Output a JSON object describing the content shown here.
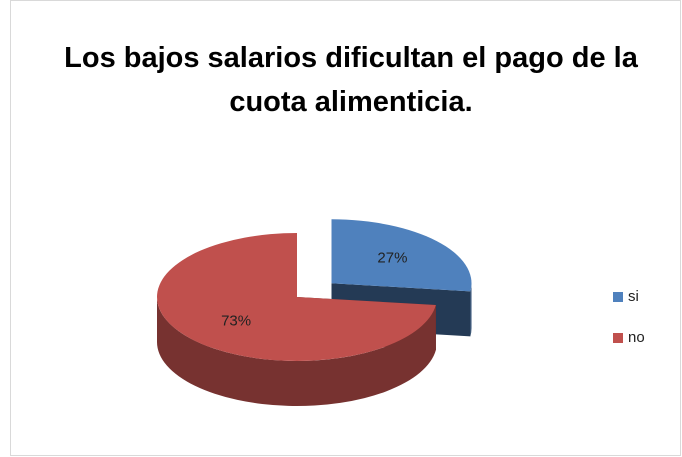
{
  "chart_data": {
    "type": "pie",
    "title": "Los bajos salarios dificultan el pago de la cuota alimenticia.",
    "categories": [
      "si",
      "no"
    ],
    "values": [
      27,
      73
    ],
    "value_labels": [
      "27%",
      "73%"
    ],
    "colors": [
      "#4f81bd",
      "#c0504d"
    ],
    "legend": "right",
    "three_d": true,
    "exploded": [
      0
    ]
  }
}
